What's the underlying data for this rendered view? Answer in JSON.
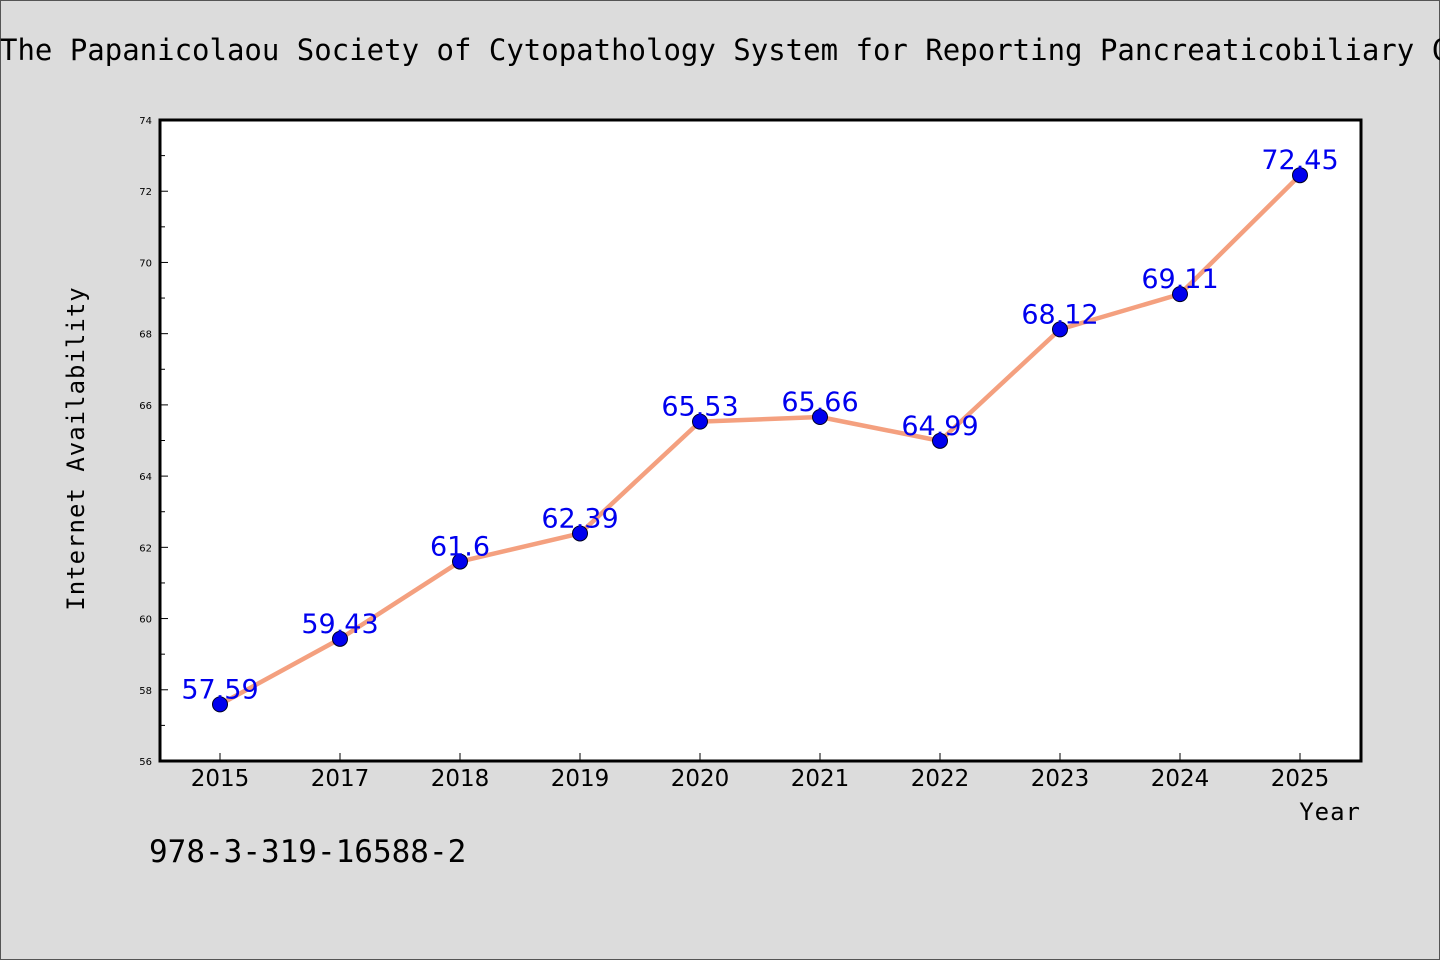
{
  "page": {
    "title": "The Papanicolaou Society of Cytopathology System for Reporting Pancreaticobiliary Cytology",
    "footer_text": "978-3-319-16588-2"
  },
  "chart_data": {
    "type": "line",
    "title": "The Papanicolaou Society of Cytopathology System for Reporting Pancreaticobiliary Cytology",
    "xlabel": "Year",
    "ylabel": "Internet Availability",
    "categories": [
      "2015",
      "2017",
      "2018",
      "2019",
      "2020",
      "2021",
      "2022",
      "2023",
      "2024",
      "2025"
    ],
    "series": [
      {
        "values": [
          57.59,
          59.43,
          61.6,
          62.39,
          65.53,
          65.66,
          64.99,
          68.12,
          69.11,
          72.45
        ],
        "data_labels": [
          "57.59",
          "59.43",
          "61.6",
          "62.39",
          "65.53",
          "65.66",
          "64.99",
          "68.12",
          "69.11",
          "72.45"
        ]
      }
    ],
    "ylim": [
      56,
      74
    ],
    "yticks": [
      "56",
      "58",
      "60",
      "62",
      "64",
      "66",
      "68",
      "70",
      "72",
      "74"
    ],
    "grid": false,
    "colors": {
      "line": "#f4a07f",
      "marker": "#0000ee",
      "label": "#0000ee"
    }
  }
}
